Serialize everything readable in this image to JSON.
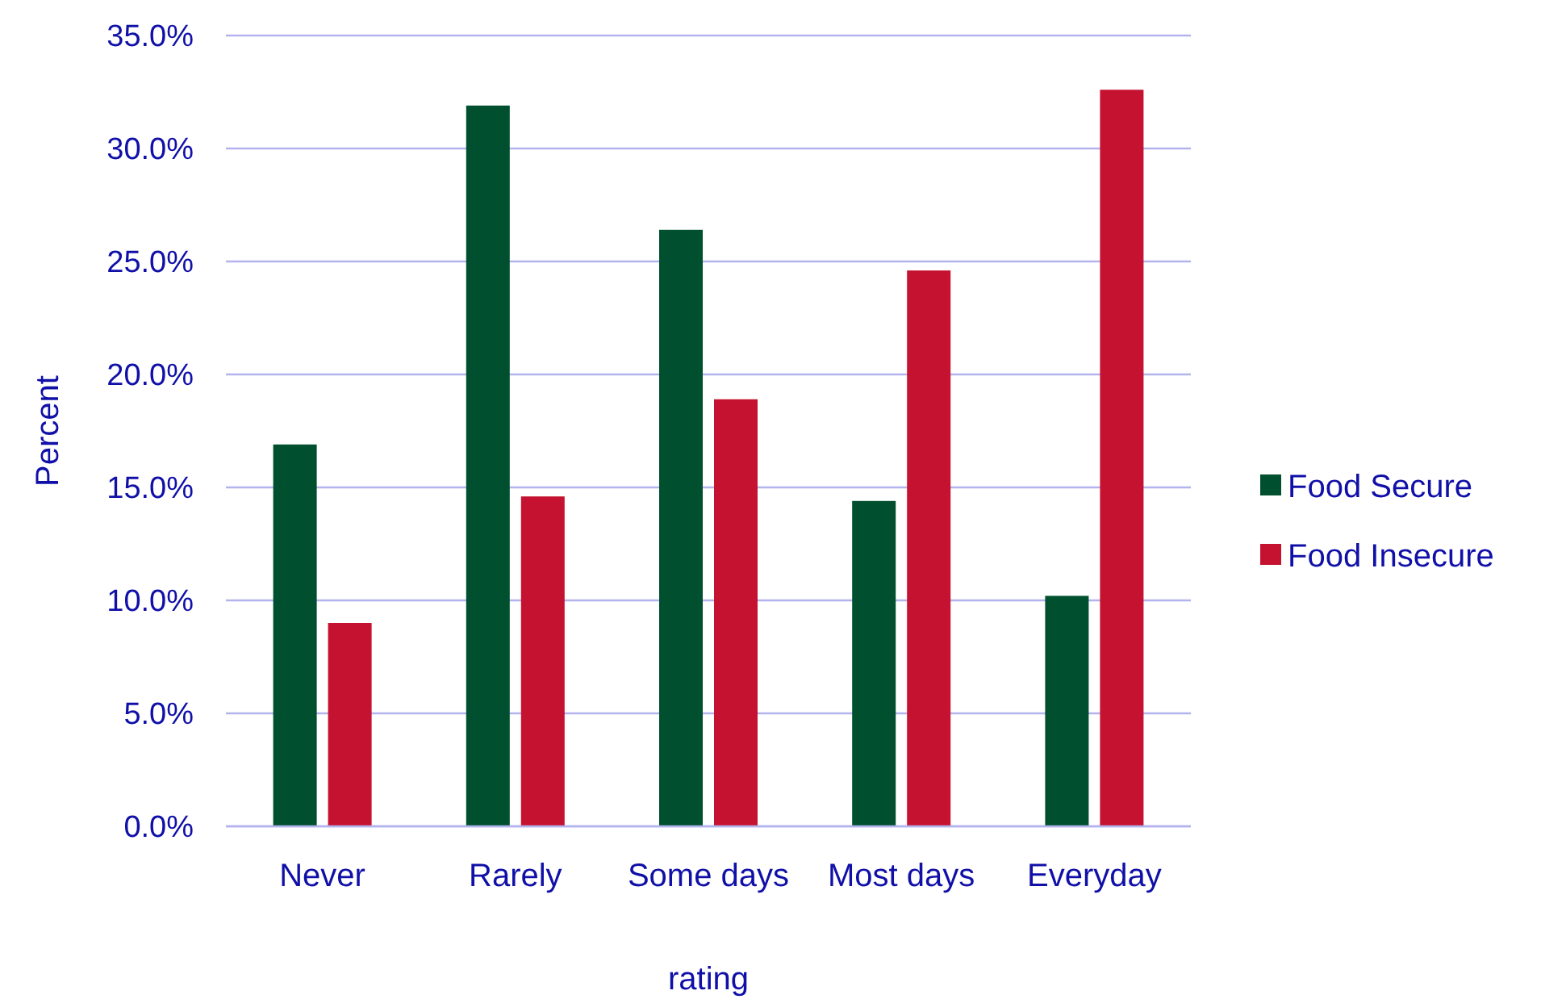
{
  "chart_data": {
    "type": "bar",
    "xlabel": "rating",
    "ylabel": "Percent",
    "categories": [
      "Never",
      "Rarely",
      "Some days",
      "Most days",
      "Everyday"
    ],
    "series": [
      {
        "name": "Food Secure",
        "color": "#00502f",
        "values": [
          16.9,
          31.9,
          26.4,
          14.4,
          10.2
        ]
      },
      {
        "name": "Food Insecure",
        "color": "#c41230",
        "values": [
          9.0,
          14.6,
          18.9,
          24.6,
          32.6
        ]
      }
    ],
    "ylim": [
      0,
      35
    ],
    "yticks": [
      {
        "value": 0,
        "label": "0.0%"
      },
      {
        "value": 5,
        "label": "5.0%"
      },
      {
        "value": 10,
        "label": "10.0%"
      },
      {
        "value": 15,
        "label": "15.0%"
      },
      {
        "value": 20,
        "label": "20.0%"
      },
      {
        "value": 25,
        "label": "25.0%"
      },
      {
        "value": 30,
        "label": "30.0%"
      },
      {
        "value": 35,
        "label": "35.0%"
      }
    ],
    "grid": "y",
    "legend": "right"
  }
}
